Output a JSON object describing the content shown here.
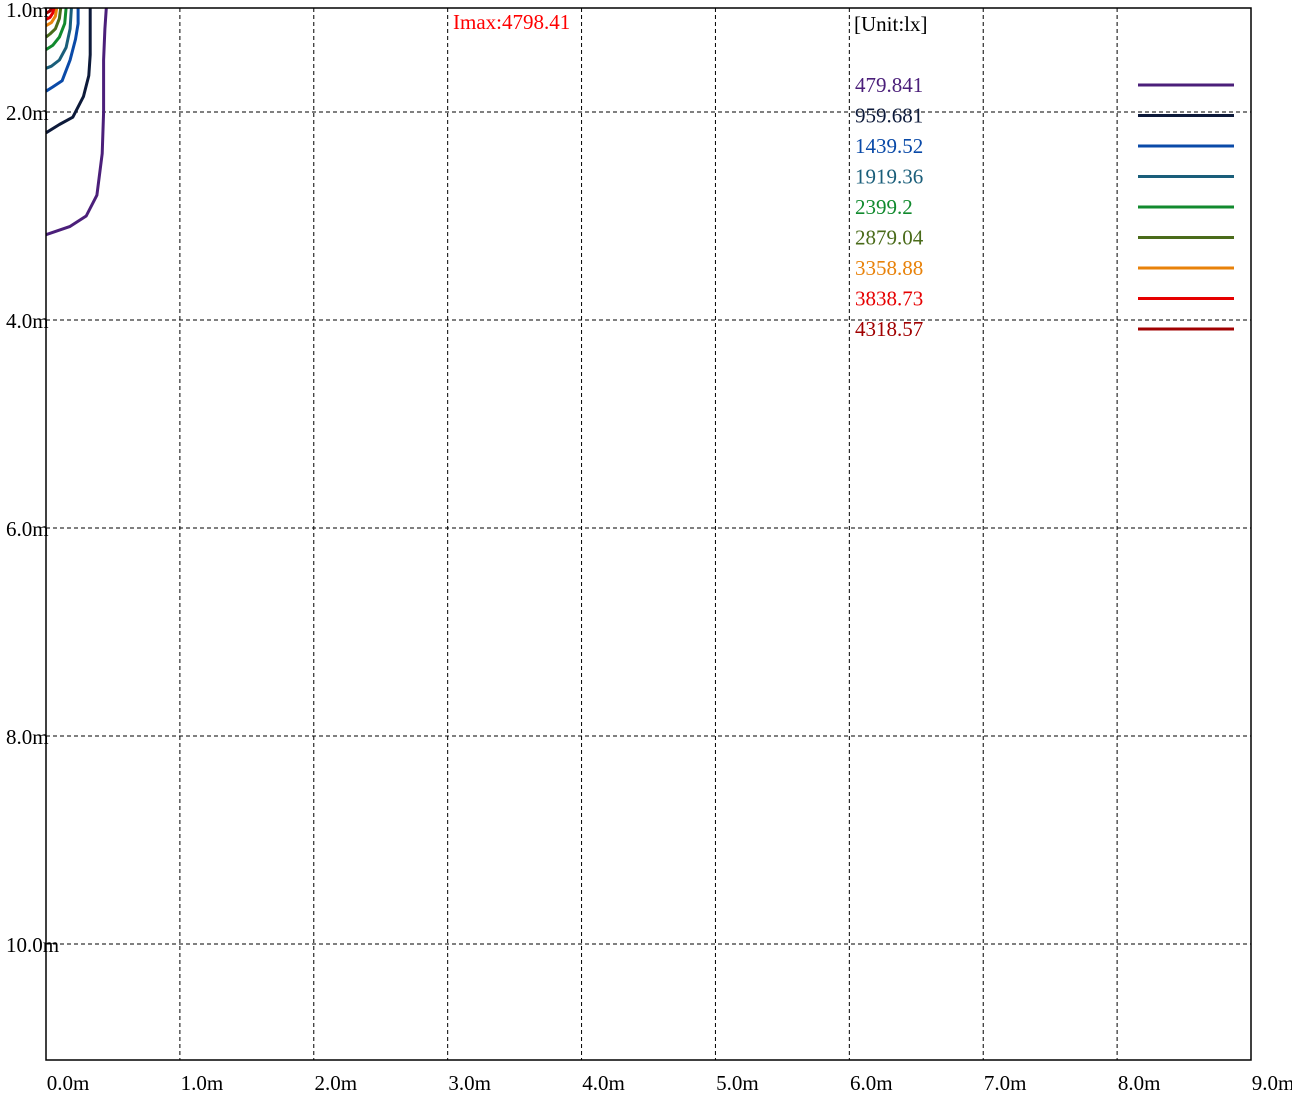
{
  "chart_data": {
    "type": "contour",
    "title": "",
    "max_label": "Imax:4798.41",
    "max_label_color": "#ff0000",
    "unit_label": "[Unit:lx]",
    "x_ticks": [
      "0.0m",
      "1.0m",
      "2.0m",
      "3.0m",
      "4.0m",
      "5.0m",
      "6.0m",
      "7.0m",
      "8.0m",
      "9.0m"
    ],
    "y_ticks": [
      "1.0m",
      "2.0m",
      "4.0m",
      "6.0m",
      "8.0m",
      "10.0m"
    ],
    "y_tick_values": [
      1.0,
      2.0,
      4.0,
      6.0,
      8.0,
      10.0
    ],
    "xlim": [
      0,
      9
    ],
    "ylim": [
      1,
      11.5
    ],
    "y_inverted": true,
    "grid": true,
    "legend_position": "top-right",
    "levels": [
      {
        "value": "479.841",
        "color": "#4b1f7a",
        "points": [
          [
            0.45,
            1.0
          ],
          [
            0.44,
            1.2
          ],
          [
            0.43,
            1.5
          ],
          [
            0.43,
            1.9
          ],
          [
            0.43,
            2.0
          ],
          [
            0.42,
            2.4
          ],
          [
            0.38,
            2.8
          ],
          [
            0.3,
            3.0
          ],
          [
            0.18,
            3.1
          ],
          [
            0.0,
            3.18
          ]
        ]
      },
      {
        "value": "959.681",
        "color": "#0d1a3a",
        "points": [
          [
            0.33,
            1.0
          ],
          [
            0.33,
            1.2
          ],
          [
            0.33,
            1.45
          ],
          [
            0.32,
            1.65
          ],
          [
            0.28,
            1.85
          ],
          [
            0.2,
            2.05
          ],
          [
            0.1,
            2.12
          ],
          [
            0.0,
            2.2
          ]
        ]
      },
      {
        "value": "1439.52",
        "color": "#0a4aa8",
        "points": [
          [
            0.24,
            1.0
          ],
          [
            0.24,
            1.15
          ],
          [
            0.22,
            1.3
          ],
          [
            0.18,
            1.5
          ],
          [
            0.12,
            1.7
          ],
          [
            0.05,
            1.76
          ],
          [
            0.0,
            1.8
          ]
        ]
      },
      {
        "value": "1919.36",
        "color": "#1a5e7a",
        "points": [
          [
            0.19,
            1.0
          ],
          [
            0.18,
            1.2
          ],
          [
            0.15,
            1.38
          ],
          [
            0.1,
            1.5
          ],
          [
            0.04,
            1.56
          ],
          [
            0.0,
            1.58
          ]
        ]
      },
      {
        "value": "2399.2",
        "color": "#118a2e",
        "points": [
          [
            0.15,
            1.0
          ],
          [
            0.14,
            1.15
          ],
          [
            0.1,
            1.28
          ],
          [
            0.05,
            1.36
          ],
          [
            0.0,
            1.4
          ]
        ]
      },
      {
        "value": "2879.04",
        "color": "#4a6b1a",
        "points": [
          [
            0.11,
            1.0
          ],
          [
            0.1,
            1.1
          ],
          [
            0.07,
            1.2
          ],
          [
            0.03,
            1.25
          ],
          [
            0.0,
            1.28
          ]
        ]
      },
      {
        "value": "3358.88",
        "color": "#e8820a",
        "points": [
          [
            0.08,
            1.0
          ],
          [
            0.07,
            1.08
          ],
          [
            0.04,
            1.14
          ],
          [
            0.0,
            1.17
          ]
        ]
      },
      {
        "value": "3838.73",
        "color": "#e60000",
        "points": [
          [
            0.06,
            1.0
          ],
          [
            0.05,
            1.05
          ],
          [
            0.03,
            1.09
          ],
          [
            0.0,
            1.11
          ]
        ]
      },
      {
        "value": "4318.57",
        "color": "#a00000",
        "points": [
          [
            0.04,
            1.0
          ],
          [
            0.03,
            1.03
          ],
          [
            0.0,
            1.05
          ]
        ]
      }
    ]
  }
}
